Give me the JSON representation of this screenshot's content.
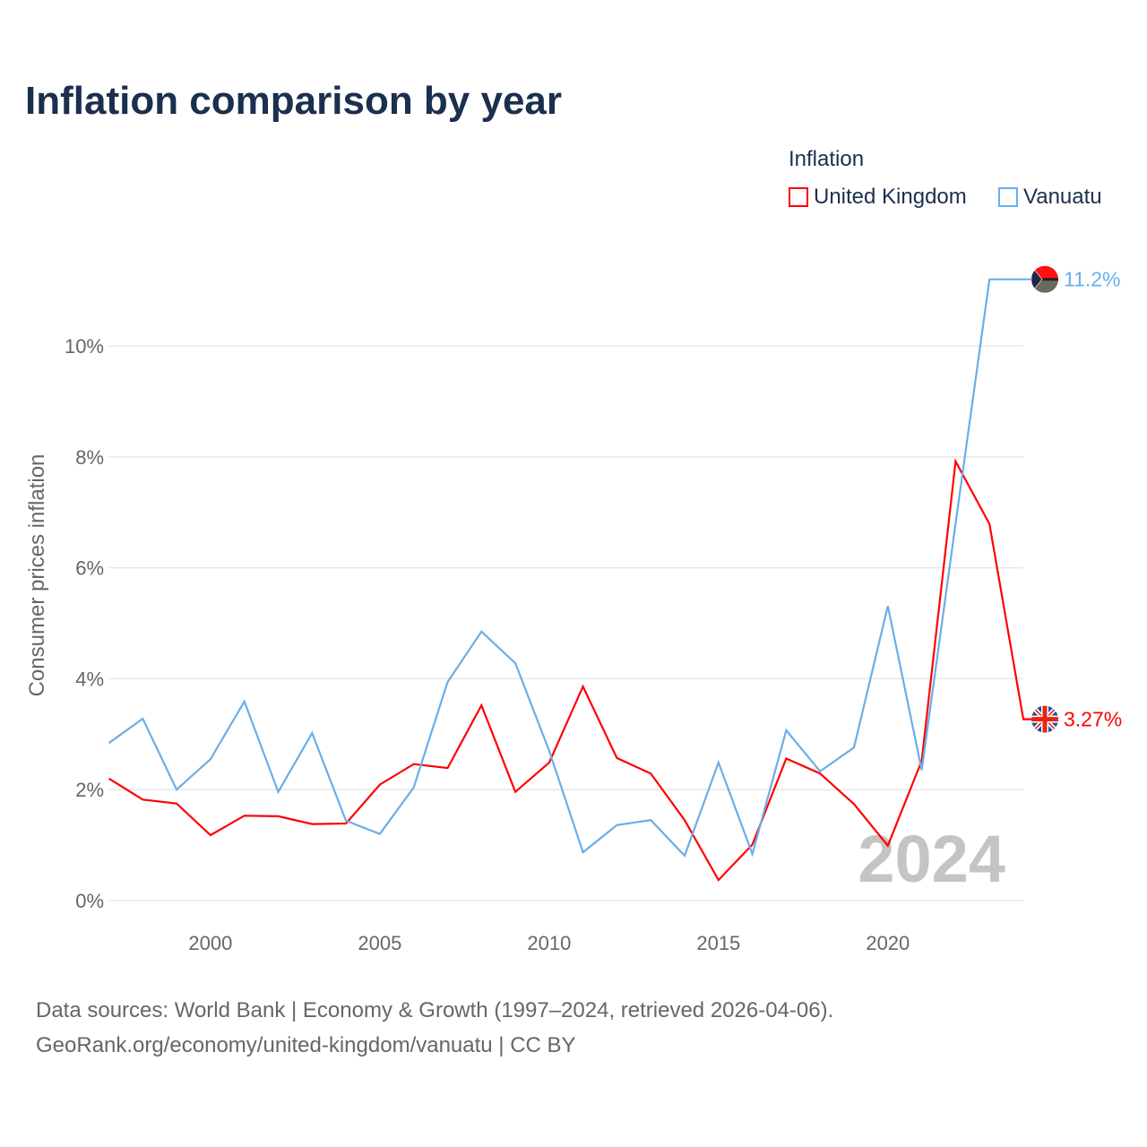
{
  "chart_data": {
    "type": "line",
    "title": "Inflation comparison by year",
    "legend_title": "Inflation",
    "legend_placement": "top-right",
    "ylabel": "Consumer prices inflation",
    "xlabel": "",
    "ylim": [
      0,
      11.5
    ],
    "xlim": [
      1997,
      2024
    ],
    "yticks": [
      0,
      2,
      4,
      6,
      8,
      10
    ],
    "ytick_labels": [
      "0%",
      "2%",
      "4%",
      "6%",
      "8%",
      "10%"
    ],
    "xticks": [
      2000,
      2005,
      2010,
      2015,
      2020
    ],
    "xtick_labels": [
      "2000",
      "2005",
      "2010",
      "2015",
      "2020"
    ],
    "grid": true,
    "year_watermark": "2024",
    "x": [
      1997,
      1998,
      1999,
      2000,
      2001,
      2002,
      2003,
      2004,
      2005,
      2006,
      2007,
      2008,
      2009,
      2010,
      2011,
      2012,
      2013,
      2014,
      2015,
      2016,
      2017,
      2018,
      2019,
      2020,
      2021,
      2022,
      2023,
      2024
    ],
    "series": [
      {
        "name": "United Kingdom",
        "color": "#ff0000",
        "end_label": "3.27%",
        "values": [
          2.2,
          1.82,
          1.75,
          1.18,
          1.53,
          1.52,
          1.38,
          1.39,
          2.09,
          2.46,
          2.39,
          3.52,
          1.96,
          2.49,
          3.86,
          2.57,
          2.29,
          1.45,
          0.37,
          1.01,
          2.56,
          2.29,
          1.74,
          0.99,
          2.52,
          7.92,
          6.79,
          3.27
        ]
      },
      {
        "name": "Vanuatu",
        "color": "#6aaee8",
        "end_label": "11.2%",
        "values": [
          2.84,
          3.28,
          2.0,
          2.55,
          3.59,
          1.96,
          3.02,
          1.44,
          1.2,
          2.04,
          3.94,
          4.85,
          4.28,
          2.7,
          0.87,
          1.36,
          1.45,
          0.81,
          2.49,
          0.84,
          3.07,
          2.33,
          2.76,
          5.31,
          2.35,
          6.8,
          11.2,
          null
        ]
      }
    ]
  },
  "footer": {
    "line1": "Data sources: World Bank | Economy & Growth (1997–2024, retrieved 2026-04-06).",
    "line2": "GeoRank.org/economy/united-kingdom/vanuatu | CC BY"
  }
}
